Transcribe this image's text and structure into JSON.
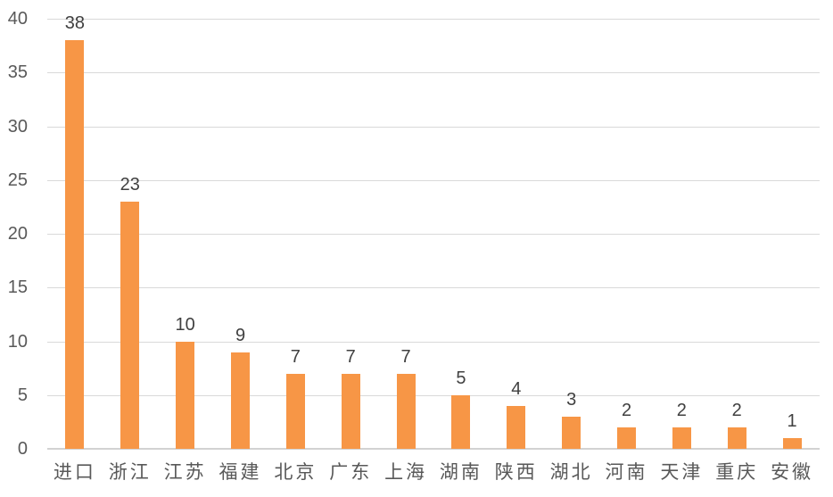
{
  "chart_data": {
    "type": "bar",
    "title": "",
    "xlabel": "",
    "ylabel": "",
    "categories": [
      "进口",
      "浙江",
      "江苏",
      "福建",
      "北京",
      "广东",
      "上海",
      "湖南",
      "陕西",
      "湖北",
      "河南",
      "天津",
      "重庆",
      "安徽"
    ],
    "values": [
      38,
      23,
      10,
      9,
      7,
      7,
      7,
      5,
      4,
      3,
      2,
      2,
      2,
      1
    ],
    "ylim": [
      0,
      40
    ],
    "yticks": [
      0,
      5,
      10,
      15,
      20,
      25,
      30,
      35,
      40
    ],
    "grid": "horizontal",
    "legend": "none",
    "data_labels": true,
    "colors": {
      "bar": "#F79646",
      "gridline": "#D9D9D9",
      "axis_line": "#D2D2D2",
      "ytick_label": "#595959",
      "xtick_label": "#595959",
      "data_label": "#404040",
      "background": "#FFFFFF"
    }
  }
}
